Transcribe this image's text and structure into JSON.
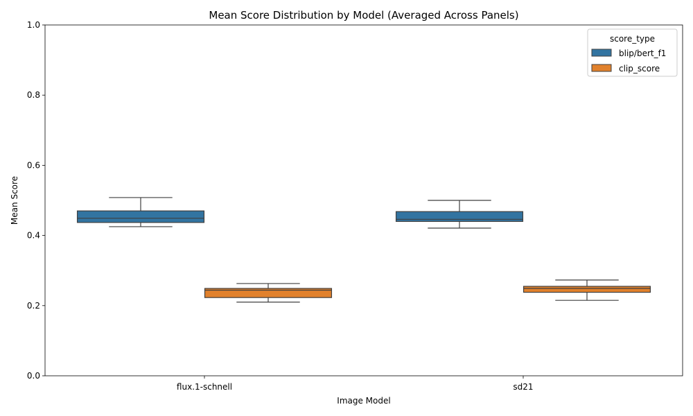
{
  "chart_data": {
    "type": "box",
    "title": "Mean Score Distribution by Model (Averaged Across Panels)",
    "xlabel": "Image Model",
    "ylabel": "Mean Score",
    "ylim": [
      0,
      1.0
    ],
    "yticks": [
      "0.0",
      "0.2",
      "0.4",
      "0.6",
      "0.8",
      "1.0"
    ],
    "categories": [
      "flux.1-schnell",
      "sd21"
    ],
    "legend": {
      "title": "score_type",
      "placement": "top-right",
      "entries": [
        "blip/bert_f1",
        "clip_score"
      ]
    },
    "series": [
      {
        "name": "blip/bert_f1",
        "color": "#3274a1",
        "boxes": [
          {
            "category": "flux.1-schnell",
            "min": 0.425,
            "q1": 0.437,
            "median": 0.449,
            "q3": 0.47,
            "max": 0.508
          },
          {
            "category": "sd21",
            "min": 0.421,
            "q1": 0.44,
            "median": 0.446,
            "q3": 0.468,
            "max": 0.5
          }
        ]
      },
      {
        "name": "clip_score",
        "color": "#e1812c",
        "boxes": [
          {
            "category": "flux.1-schnell",
            "min": 0.21,
            "q1": 0.223,
            "median": 0.244,
            "q3": 0.249,
            "max": 0.263
          },
          {
            "category": "sd21",
            "min": 0.215,
            "q1": 0.238,
            "median": 0.249,
            "q3": 0.255,
            "max": 0.273
          }
        ]
      }
    ]
  }
}
